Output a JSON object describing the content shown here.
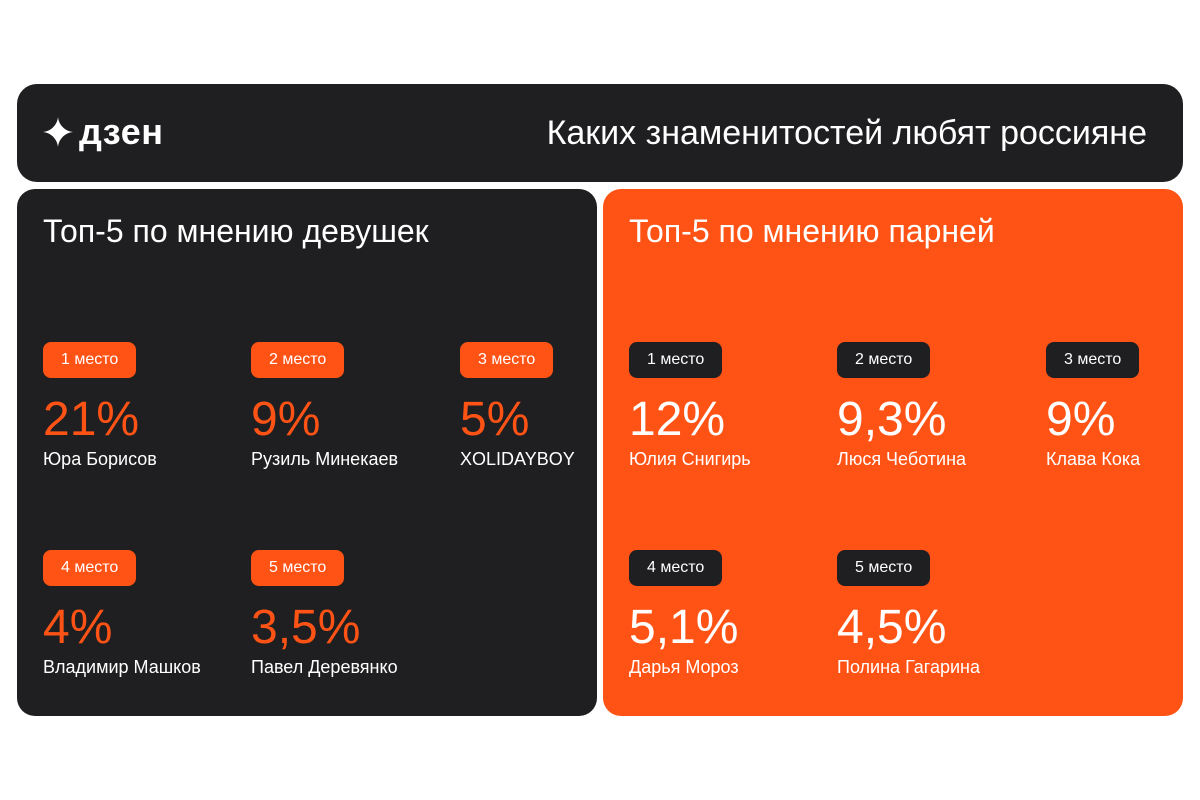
{
  "header": {
    "logo_text": "дзен",
    "title": "Каких знаменитостей любят россияне"
  },
  "girls": {
    "title": "Топ-5 по мнению девушек",
    "items": [
      {
        "place": "1 место",
        "percent": "21%",
        "name": "Юра Борисов"
      },
      {
        "place": "2 место",
        "percent": "9%",
        "name": "Рузиль Минекаев"
      },
      {
        "place": "3 место",
        "percent": "5%",
        "name": "XOLIDAYBOY"
      },
      {
        "place": "4 место",
        "percent": "4%",
        "name": "Владимир Машков"
      },
      {
        "place": "5 место",
        "percent": "3,5%",
        "name": "Павел Деревянко"
      }
    ]
  },
  "boys": {
    "title": "Топ-5 по мнению парней",
    "items": [
      {
        "place": "1 место",
        "percent": "12%",
        "name": "Юлия Снигирь"
      },
      {
        "place": "2 место",
        "percent": "9,3%",
        "name": "Люся Чеботина"
      },
      {
        "place": "3 место",
        "percent": "9%",
        "name": "Клава Кока"
      },
      {
        "place": "4 место",
        "percent": "5,1%",
        "name": "Дарья Мороз"
      },
      {
        "place": "5 место",
        "percent": "4,5%",
        "name": "Полина Гагарина"
      }
    ]
  },
  "colors": {
    "accent": "#ff5316",
    "dark": "#1f1f21"
  }
}
